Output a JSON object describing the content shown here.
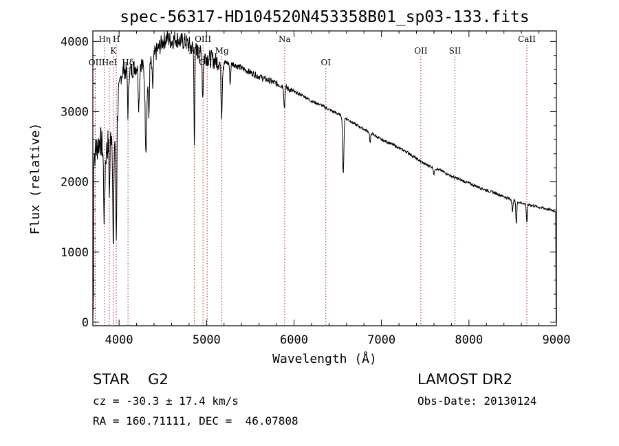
{
  "chart_data": {
    "type": "line",
    "title": "spec-56317-HD104520N453358B01_sp03-133.fits",
    "xlabel": "Wavelength (Å)",
    "ylabel": "Flux (relative)",
    "xlim": [
      3700,
      9000
    ],
    "ylim": [
      -50,
      4150
    ],
    "xticks": [
      4000,
      5000,
      6000,
      7000,
      8000,
      9000
    ],
    "yticks": [
      0,
      1000,
      2000,
      3000,
      4000
    ],
    "spectrum_anchors": [
      [
        3700,
        2300
      ],
      [
        3720,
        2400
      ],
      [
        3750,
        2500
      ],
      [
        3780,
        2600
      ],
      [
        3810,
        2500
      ],
      [
        3850,
        2400
      ],
      [
        3880,
        2600
      ],
      [
        3910,
        2700
      ],
      [
        3950,
        2600
      ],
      [
        3980,
        3000
      ],
      [
        4000,
        3300
      ],
      [
        4020,
        3500
      ],
      [
        4050,
        3600
      ],
      [
        4100,
        3550
      ],
      [
        4150,
        3600
      ],
      [
        4200,
        3650
      ],
      [
        4250,
        3700
      ],
      [
        4300,
        3550
      ],
      [
        4350,
        3650
      ],
      [
        4400,
        3800
      ],
      [
        4450,
        3900
      ],
      [
        4500,
        4000
      ],
      [
        4550,
        4050
      ],
      [
        4600,
        4000
      ],
      [
        4650,
        4050
      ],
      [
        4700,
        4000
      ],
      [
        4750,
        4000
      ],
      [
        4800,
        3950
      ],
      [
        4850,
        3900
      ],
      [
        4900,
        3850
      ],
      [
        4950,
        3800
      ],
      [
        5000,
        3780
      ],
      [
        5100,
        3720
      ],
      [
        5200,
        3700
      ],
      [
        5300,
        3680
      ],
      [
        5400,
        3620
      ],
      [
        5500,
        3560
      ],
      [
        5600,
        3500
      ],
      [
        5700,
        3450
      ],
      [
        5800,
        3400
      ],
      [
        5900,
        3350
      ],
      [
        6000,
        3280
      ],
      [
        6100,
        3230
      ],
      [
        6200,
        3150
      ],
      [
        6300,
        3100
      ],
      [
        6400,
        3030
      ],
      [
        6500,
        2970
      ],
      [
        6600,
        2900
      ],
      [
        6700,
        2820
      ],
      [
        6800,
        2750
      ],
      [
        6900,
        2680
      ],
      [
        7000,
        2600
      ],
      [
        7100,
        2550
      ],
      [
        7200,
        2480
      ],
      [
        7300,
        2420
      ],
      [
        7400,
        2330
      ],
      [
        7500,
        2250
      ],
      [
        7600,
        2200
      ],
      [
        7700,
        2150
      ],
      [
        7800,
        2080
      ],
      [
        7900,
        2030
      ],
      [
        8000,
        1980
      ],
      [
        8100,
        1930
      ],
      [
        8200,
        1880
      ],
      [
        8300,
        1840
      ],
      [
        8400,
        1790
      ],
      [
        8500,
        1740
      ],
      [
        8600,
        1700
      ],
      [
        8700,
        1670
      ],
      [
        8800,
        1640
      ],
      [
        8900,
        1610
      ],
      [
        9000,
        1580
      ]
    ],
    "absorption_dips": [
      [
        3830,
        1500,
        10
      ],
      [
        3890,
        1850,
        8
      ],
      [
        3934,
        950,
        8
      ],
      [
        3968,
        1200,
        8
      ],
      [
        4102,
        2950,
        8
      ],
      [
        4226,
        3100,
        10
      ],
      [
        4308,
        2500,
        14
      ],
      [
        4340,
        2900,
        8
      ],
      [
        4384,
        3350,
        10
      ],
      [
        4861,
        2600,
        7
      ],
      [
        4957,
        3200,
        8
      ],
      [
        5172,
        3000,
        10
      ],
      [
        5270,
        3400,
        8
      ],
      [
        5890,
        3050,
        8
      ],
      [
        6563,
        2100,
        10
      ],
      [
        6870,
        2550,
        8
      ],
      [
        7600,
        2100,
        8
      ],
      [
        8498,
        1550,
        7
      ],
      [
        8542,
        1400,
        8
      ],
      [
        8662,
        1420,
        8
      ]
    ],
    "emission_lines": [
      {
        "label": "OII",
        "wavelength": 3727,
        "row": 3
      },
      {
        "label": "Hη",
        "wavelength": 3835,
        "row": 1
      },
      {
        "label": "HeI",
        "wavelength": 3889,
        "row": 3
      },
      {
        "label": "K",
        "wavelength": 3934,
        "row": 2
      },
      {
        "label": "H",
        "wavelength": 3968,
        "row": 1
      },
      {
        "label": "Hδ",
        "wavelength": 4102,
        "row": 3
      },
      {
        "label": "Hβ",
        "wavelength": 4861,
        "row": 2
      },
      {
        "label": "OIII",
        "wavelength": 4959,
        "row": 1
      },
      {
        "label": "OIII",
        "wavelength": 5007,
        "row": 3
      },
      {
        "label": "Mg",
        "wavelength": 5175,
        "row": 2
      },
      {
        "label": "Na",
        "wavelength": 5893,
        "row": 1
      },
      {
        "label": "OI",
        "wavelength": 6364,
        "row": 3
      },
      {
        "label": "OII",
        "wavelength": 7450,
        "row": 2
      },
      {
        "label": "SII",
        "wavelength": 7840,
        "row": 2
      },
      {
        "label": "CaII",
        "wavelength": 8662,
        "row": 1
      }
    ],
    "line_color": "#000000",
    "marker_color": "#aa2222"
  },
  "info": {
    "classification": "STAR    G2",
    "redshift": "cz = -30.3 ± 17.4 km/s",
    "coords": "RA = 160.71111, DEC =  46.07808",
    "survey": "LAMOST DR2",
    "obs_date": "Obs-Date: 20130124"
  }
}
